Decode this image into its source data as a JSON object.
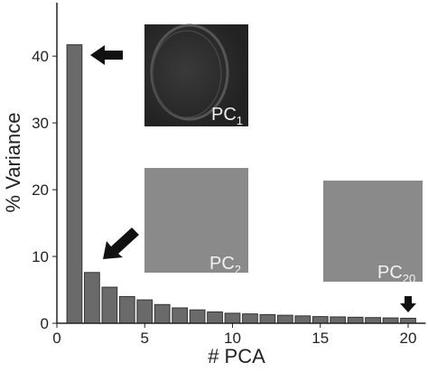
{
  "chart_data": {
    "type": "bar",
    "x_label": "# PCA",
    "y_label": "% Variance",
    "x": [
      1,
      2,
      3,
      4,
      5,
      6,
      7,
      8,
      9,
      10,
      11,
      12,
      13,
      14,
      15,
      16,
      17,
      18,
      19,
      20
    ],
    "values": [
      41.7,
      7.6,
      5.4,
      4.0,
      3.5,
      2.8,
      2.3,
      2.0,
      1.7,
      1.5,
      1.4,
      1.3,
      1.2,
      1.1,
      1.0,
      0.95,
      0.9,
      0.85,
      0.8,
      0.75
    ],
    "color": "#6a6a6a",
    "xlim": [
      0,
      21
    ],
    "xticks": [
      0,
      5,
      10,
      15,
      20
    ],
    "ylim": [
      0,
      48
    ],
    "yticks": [
      0,
      10,
      20,
      30,
      40
    ],
    "insets": [
      {
        "label": "PC",
        "sub": "1"
      },
      {
        "label": "PC",
        "sub": "2"
      },
      {
        "label": "PC",
        "sub": "20"
      }
    ]
  }
}
